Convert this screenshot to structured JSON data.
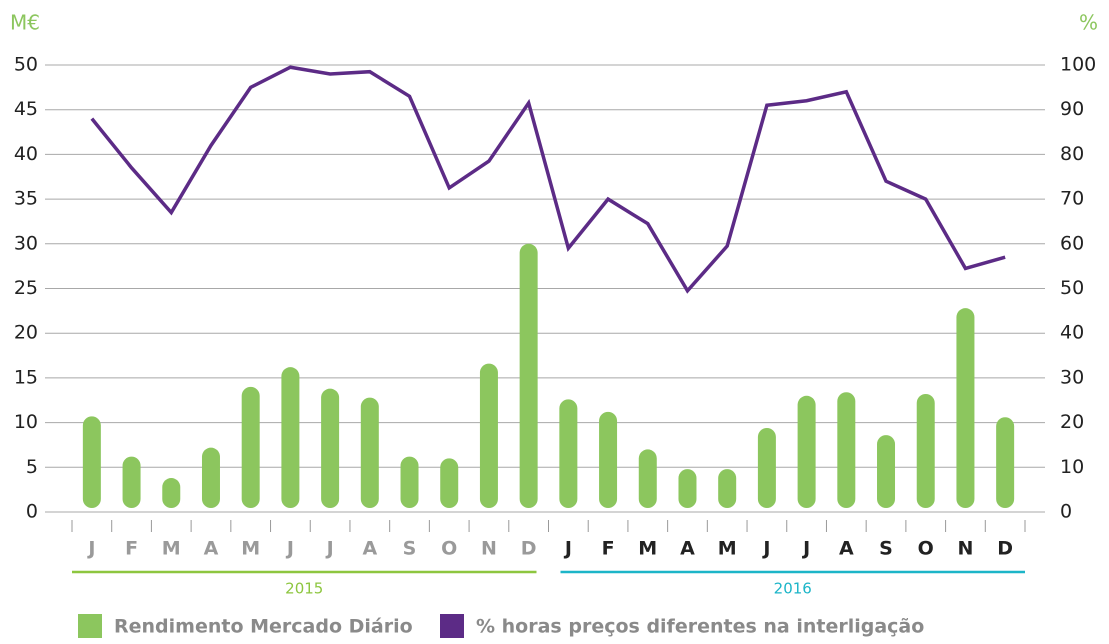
{
  "chart_data": {
    "type": "bar-line",
    "y_label": "M€",
    "y2_label": "%",
    "categories": [
      "J",
      "F",
      "M",
      "A",
      "M",
      "J",
      "J",
      "A",
      "S",
      "O",
      "N",
      "D",
      "J",
      "F",
      "M",
      "A",
      "M",
      "J",
      "J",
      "A",
      "S",
      "O",
      "N",
      "D"
    ],
    "groups": [
      {
        "label": "2015",
        "color": "#8dc63f",
        "label_color": "#9a9a9a"
      },
      {
        "label": "2016",
        "color": "#1cb5c8",
        "label_color": "#222222"
      }
    ],
    "series": [
      {
        "name": "Rendimento Mercado Diário",
        "type": "bar",
        "color": "#8cc65e",
        "values": [
          10.7,
          6.2,
          3.8,
          7.2,
          14,
          16.2,
          13.8,
          12.8,
          6.2,
          6,
          16.6,
          30,
          12.6,
          11.2,
          7,
          4.8,
          4.8,
          9.4,
          13,
          13.4,
          8.6,
          13.2,
          22.8,
          10.6
        ]
      },
      {
        "name": "% horas preços diferentes na interligação",
        "type": "line",
        "axis": "y2",
        "color": "#5c2b86",
        "values": [
          88,
          77,
          67,
          82,
          95,
          99.5,
          98,
          98.5,
          93,
          72.5,
          78.5,
          91.5,
          59,
          70,
          64.5,
          49.5,
          59.5,
          91,
          92,
          94,
          74,
          70,
          54.5,
          57
        ]
      }
    ],
    "ylim": [
      0,
      50
    ],
    "yticks": [
      0,
      5,
      10,
      15,
      20,
      25,
      30,
      35,
      40,
      45,
      50
    ],
    "y2lim": [
      0,
      100
    ],
    "y2ticks": [
      0,
      10,
      20,
      30,
      40,
      50,
      60,
      70,
      80,
      90,
      100
    ],
    "grid": true
  }
}
